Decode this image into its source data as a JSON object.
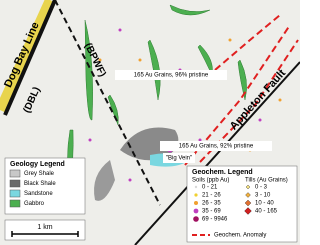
{
  "map": {
    "labels": {
      "dog_bay_line": "Dog Bay Line",
      "dbl": "(DBL)",
      "bpwf": "(BPWF)",
      "grains_96": "165 Au Grains, 96% pristine",
      "grains_92": "165 Au Grains, 92% pristine",
      "appleton_fault": "Appleton Fault",
      "big_vein": "\"Big Vein\""
    },
    "geology_legend": {
      "title": "Geology Legend",
      "items": [
        "Grey Shale",
        "Black Shale",
        "Sandstone",
        "Gabbro"
      ]
    },
    "geochem_legend": {
      "title": "Geochem. Legend",
      "soils_title": "Soils (ppb Au)",
      "tills_title": "Tills (Au Grains)",
      "soils": [
        "0 - 21",
        "21 - 26",
        "26 - 35",
        "35 - 69",
        "69 - 9946"
      ],
      "tills": [
        "0 - 3",
        "3 - 10",
        "10 - 40",
        "40 - 165"
      ],
      "anomaly": "Geochem. Anomaly"
    },
    "scale_bar": "1 km"
  }
}
